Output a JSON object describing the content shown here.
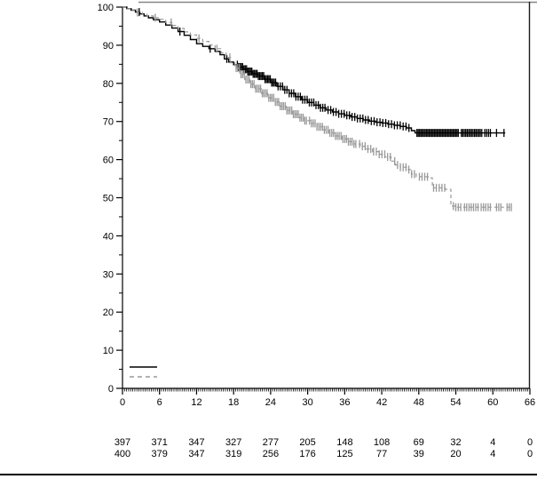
{
  "figure": {
    "background": "#ffffff",
    "top_border_color": "#858585",
    "right_border_color": "#1a1a1a",
    "bottom_rule_color": "#000000",
    "axis_color": "#000000",
    "text_color": "#000000"
  },
  "chart_data": {
    "type": "line",
    "subtype": "kaplan-meier-step",
    "title": "",
    "xlabel": "",
    "ylabel": "",
    "xlim": [
      0,
      66
    ],
    "ylim": [
      0,
      100
    ],
    "x_ticks": [
      0,
      6,
      12,
      18,
      24,
      30,
      36,
      42,
      48,
      54,
      60,
      66
    ],
    "x_tick_labels": [
      "0",
      "6",
      "12",
      "18",
      "24",
      "30",
      "36",
      "42",
      "48",
      "54",
      "60",
      "66"
    ],
    "x_minor_tick_step": 0.3333,
    "y_ticks": [
      0,
      10,
      20,
      30,
      40,
      50,
      60,
      70,
      80,
      90,
      100
    ],
    "y_tick_labels": [
      "0",
      "10",
      "20",
      "30",
      "40",
      "50",
      "60",
      "70",
      "80",
      "90",
      "100"
    ],
    "y_minor_ticks": [
      5,
      15,
      25,
      35,
      45,
      55,
      65,
      75,
      85,
      95
    ],
    "grid": false,
    "legend_position": "bottom-left-inside",
    "legend": [
      {
        "series": "group-1",
        "line_style": "solid",
        "color": "#000000",
        "label": ""
      },
      {
        "series": "group-2",
        "line_style": "dashed",
        "color": "#999999",
        "label": ""
      }
    ],
    "series": [
      {
        "name": "group-1-solid",
        "color": "#000000",
        "style": "solid",
        "points": [
          [
            0,
            100
          ],
          [
            0.7,
            99.6
          ],
          [
            1.4,
            99.2
          ],
          [
            2.1,
            98.7
          ],
          [
            2.8,
            98.2
          ],
          [
            3.5,
            97.7
          ],
          [
            4.2,
            97.2
          ],
          [
            5,
            96.7
          ],
          [
            6,
            96.1
          ],
          [
            7,
            95.3
          ],
          [
            8,
            94.5
          ],
          [
            9,
            93.6
          ],
          [
            10,
            92.6
          ],
          [
            11,
            91.5
          ],
          [
            12,
            90.4
          ],
          [
            13,
            89.7
          ],
          [
            14,
            89.1
          ],
          [
            15,
            88.4
          ],
          [
            15.8,
            87.5
          ],
          [
            16.5,
            86.4
          ],
          [
            17.2,
            85.6
          ],
          [
            18,
            84.9
          ],
          [
            18.8,
            84.3
          ],
          [
            19.5,
            83.7
          ],
          [
            20.2,
            83.1
          ],
          [
            21,
            82.5
          ],
          [
            22,
            81.9
          ],
          [
            23,
            81.1
          ],
          [
            24,
            80.2
          ],
          [
            25,
            79.2
          ],
          [
            26,
            78.3
          ],
          [
            27,
            77.4
          ],
          [
            28,
            76.5
          ],
          [
            29,
            75.7
          ],
          [
            30,
            75.0
          ],
          [
            31,
            74.3
          ],
          [
            32,
            73.6
          ],
          [
            33,
            73.0
          ],
          [
            34,
            72.5
          ],
          [
            35,
            72.0
          ],
          [
            36,
            71.6
          ],
          [
            37,
            71.2
          ],
          [
            38,
            70.8
          ],
          [
            39,
            70.4
          ],
          [
            40,
            70.1
          ],
          [
            41,
            69.8
          ],
          [
            42,
            69.6
          ],
          [
            43,
            69.3
          ],
          [
            44,
            69.0
          ],
          [
            45,
            68.7
          ],
          [
            46,
            68.3
          ],
          [
            46.8,
            67.6
          ],
          [
            47.4,
            67.0
          ],
          [
            62,
            67.0
          ]
        ],
        "censor_runs": [
          {
            "t0": 2.7,
            "t1": 2.7,
            "n": 1
          },
          {
            "t0": 9.3,
            "t1": 9.3,
            "n": 1
          },
          {
            "t0": 14.2,
            "t1": 14.2,
            "n": 1
          },
          {
            "t0": 16.9,
            "t1": 16.9,
            "n": 1
          },
          {
            "t0": 18.6,
            "t1": 24.8,
            "n": 30
          },
          {
            "t0": 25.2,
            "t1": 32.8,
            "n": 22
          },
          {
            "t0": 33.3,
            "t1": 39.8,
            "n": 16
          },
          {
            "t0": 40.3,
            "t1": 46.4,
            "n": 14
          },
          {
            "t0": 47.7,
            "t1": 54.4,
            "n": 32
          },
          {
            "t0": 54.9,
            "t1": 58.2,
            "n": 15
          },
          {
            "t0": 58.7,
            "t1": 59.6,
            "n": 4
          },
          {
            "t0": 60.6,
            "t1": 60.6,
            "n": 1
          },
          {
            "t0": 61.8,
            "t1": 61.8,
            "n": 1
          }
        ]
      },
      {
        "name": "group-2-dashed",
        "color": "#999999",
        "style": "dashed",
        "points": [
          [
            0,
            100
          ],
          [
            0.8,
            99.6
          ],
          [
            1.6,
            99.1
          ],
          [
            2.4,
            98.6
          ],
          [
            3.2,
            98.1
          ],
          [
            4,
            97.7
          ],
          [
            5,
            97.2
          ],
          [
            6,
            96.8
          ],
          [
            7,
            96.0
          ],
          [
            8,
            95.2
          ],
          [
            9,
            94.4
          ],
          [
            10,
            93.5
          ],
          [
            11,
            92.7
          ],
          [
            12,
            91.8
          ],
          [
            13,
            91.0
          ],
          [
            14,
            90.1
          ],
          [
            15,
            89.1
          ],
          [
            16,
            88.0
          ],
          [
            16.8,
            86.8
          ],
          [
            17.5,
            85.4
          ],
          [
            18.2,
            84.0
          ],
          [
            19,
            82.4
          ],
          [
            19.8,
            81.0
          ],
          [
            20.6,
            79.8
          ],
          [
            21.5,
            78.6
          ],
          [
            22.5,
            77.4
          ],
          [
            23.5,
            76.2
          ],
          [
            24.5,
            75.1
          ],
          [
            25.5,
            74.0
          ],
          [
            26.5,
            72.9
          ],
          [
            27.5,
            71.9
          ],
          [
            28.5,
            71.0
          ],
          [
            29.5,
            70.2
          ],
          [
            30.5,
            69.5
          ],
          [
            31.5,
            68.6
          ],
          [
            32.5,
            67.8
          ],
          [
            33.5,
            67.0
          ],
          [
            34.5,
            66.2
          ],
          [
            35.5,
            65.4
          ],
          [
            36.5,
            64.7
          ],
          [
            37.5,
            64.1
          ],
          [
            38.5,
            63.5
          ],
          [
            39.5,
            62.8
          ],
          [
            40.5,
            62.1
          ],
          [
            41.5,
            61.4
          ],
          [
            42.5,
            60.7
          ],
          [
            43.5,
            59.6
          ],
          [
            44.2,
            58.6
          ],
          [
            45,
            58.0
          ],
          [
            46,
            57.4
          ],
          [
            46.8,
            56.2
          ],
          [
            47.6,
            55.5
          ],
          [
            49.5,
            55.2
          ],
          [
            50.2,
            52.6
          ],
          [
            52.3,
            52.2
          ],
          [
            53.2,
            47.8
          ],
          [
            54,
            47.5
          ],
          [
            63,
            47.5
          ]
        ],
        "censor_runs": [
          {
            "t0": 2.4,
            "t1": 2.4,
            "n": 1
          },
          {
            "t0": 5.3,
            "t1": 5.3,
            "n": 1
          },
          {
            "t0": 7.9,
            "t1": 7.9,
            "n": 1
          },
          {
            "t0": 12.4,
            "t1": 12.4,
            "n": 1
          },
          {
            "t0": 15.3,
            "t1": 15.3,
            "n": 1
          },
          {
            "t0": 17.4,
            "t1": 17.4,
            "n": 1
          },
          {
            "t0": 18.4,
            "t1": 29.8,
            "n": 44
          },
          {
            "t0": 30.3,
            "t1": 37.8,
            "n": 26
          },
          {
            "t0": 38.4,
            "t1": 43.4,
            "n": 12
          },
          {
            "t0": 44.1,
            "t1": 47.3,
            "n": 8
          },
          {
            "t0": 48.1,
            "t1": 49.4,
            "n": 4
          },
          {
            "t0": 50.4,
            "t1": 52.2,
            "n": 5
          },
          {
            "t0": 53.6,
            "t1": 54.8,
            "n": 4
          },
          {
            "t0": 55.4,
            "t1": 57.6,
            "n": 7
          },
          {
            "t0": 58.1,
            "t1": 59.6,
            "n": 5
          },
          {
            "t0": 60.6,
            "t1": 61.3,
            "n": 3
          },
          {
            "t0": 62.3,
            "t1": 63,
            "n": 3
          }
        ]
      }
    ],
    "at_risk": {
      "times": [
        0,
        6,
        12,
        18,
        24,
        30,
        36,
        42,
        48,
        54,
        60,
        66
      ],
      "rows": [
        {
          "series": "group-1-solid",
          "counts": [
            "397",
            "371",
            "347",
            "327",
            "277",
            "205",
            "148",
            "108",
            "69",
            "32",
            "4",
            "0"
          ]
        },
        {
          "series": "group-2-dashed",
          "counts": [
            "400",
            "379",
            "347",
            "319",
            "256",
            "176",
            "125",
            "77",
            "39",
            "20",
            "4",
            "0"
          ]
        }
      ]
    }
  }
}
